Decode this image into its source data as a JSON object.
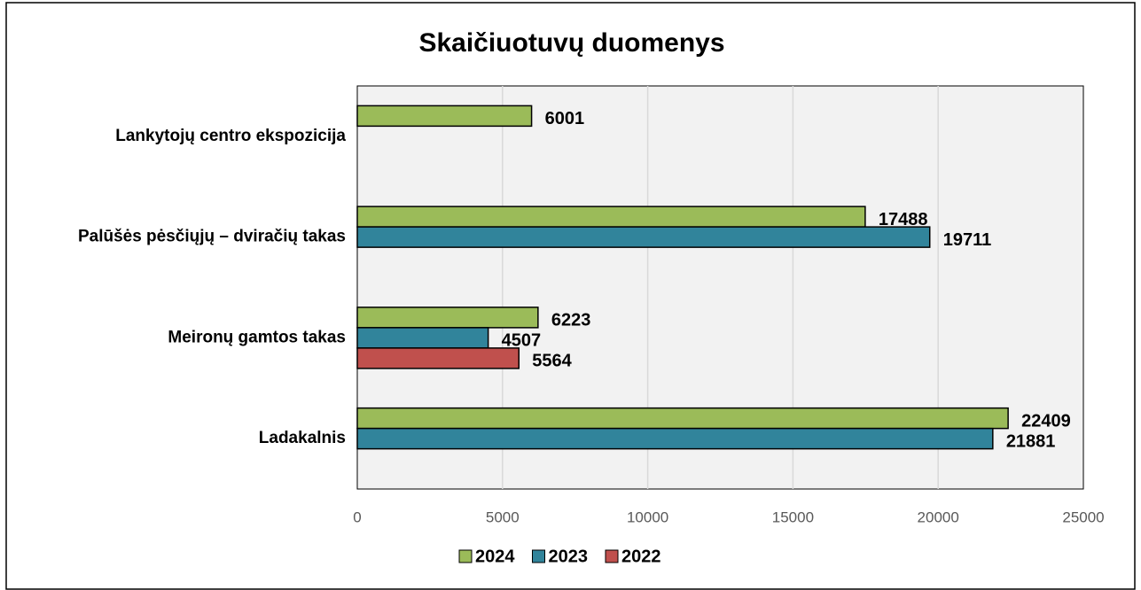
{
  "chart_data": {
    "type": "bar",
    "orientation": "horizontal",
    "title": "Skaičiuotuvų duomenys",
    "categories": [
      "Lankytojų centro ekspozicija",
      "Palūšės pėsčiųjų – dviračių takas",
      "Meironų gamtos takas",
      "Ladakalnis"
    ],
    "series": [
      {
        "name": "2024",
        "color": "#9bbb59",
        "values": [
          6001,
          17488,
          6223,
          22409
        ]
      },
      {
        "name": "2023",
        "color": "#31849b",
        "values": [
          null,
          19711,
          4507,
          21881
        ]
      },
      {
        "name": "2022",
        "color": "#c0504d",
        "values": [
          null,
          null,
          5564,
          null
        ]
      }
    ],
    "xlim": [
      0,
      25000
    ],
    "xticks": [
      0,
      5000,
      10000,
      15000,
      20000,
      25000
    ],
    "grid": true,
    "legend": "bottom"
  }
}
